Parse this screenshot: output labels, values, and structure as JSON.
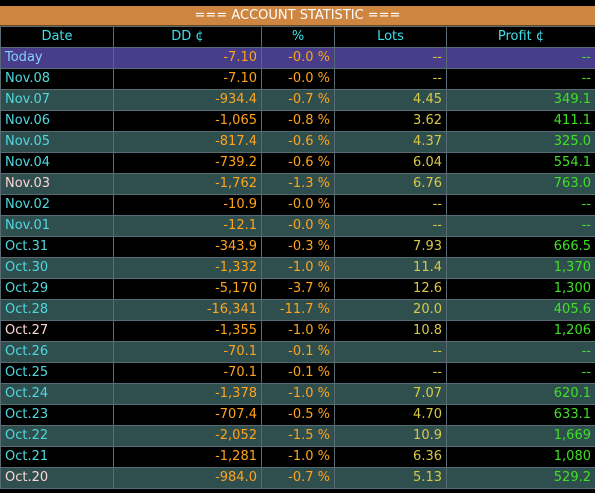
{
  "title": "=== ACCOUNT STATISTIC ===",
  "headers": [
    "Date",
    "DD ¢",
    "%",
    "Lots",
    "Profit ¢"
  ],
  "colors": {
    "title_bg": "#cd853f",
    "today_bg": "#483d8b",
    "row_teal": "#2f4f4f",
    "row_black": "#000000",
    "dd": "#ffa31a",
    "lots": "#d8c846",
    "profit": "#3fe024",
    "date": "#4fd8e0"
  },
  "rows": [
    {
      "date": "Today",
      "dd": "-7.10",
      "pct": "-0.0 %",
      "lots": "--",
      "profit": "--",
      "style": "today",
      "datecolor": "sky"
    },
    {
      "date": "Nov.08",
      "dd": "-7.10",
      "pct": "-0.0 %",
      "lots": "--",
      "profit": "--",
      "style": "k",
      "datecolor": "cyan"
    },
    {
      "date": "Nov.07",
      "dd": "-934.4",
      "pct": "-0.7 %",
      "lots": "4.45",
      "profit": "349.1",
      "style": "g",
      "datecolor": "cyan"
    },
    {
      "date": "Nov.06",
      "dd": "-1,065",
      "pct": "-0.8 %",
      "lots": "3.62",
      "profit": "411.1",
      "style": "k",
      "datecolor": "cyan"
    },
    {
      "date": "Nov.05",
      "dd": "-817.4",
      "pct": "-0.6 %",
      "lots": "4.37",
      "profit": "325.0",
      "style": "g",
      "datecolor": "cyan"
    },
    {
      "date": "Nov.04",
      "dd": "-739.2",
      "pct": "-0.6 %",
      "lots": "6.04",
      "profit": "554.1",
      "style": "k",
      "datecolor": "cyan"
    },
    {
      "date": "Nov.03",
      "dd": "-1,762",
      "pct": "-1.3 %",
      "lots": "6.76",
      "profit": "763.0",
      "style": "g",
      "datecolor": "rose"
    },
    {
      "date": "Nov.02",
      "dd": "-10.9",
      "pct": "-0.0 %",
      "lots": "--",
      "profit": "--",
      "style": "k",
      "datecolor": "cyan"
    },
    {
      "date": "Nov.01",
      "dd": "-12.1",
      "pct": "-0.0 %",
      "lots": "--",
      "profit": "--",
      "style": "g",
      "datecolor": "cyan"
    },
    {
      "date": "Oct.31",
      "dd": "-343.9",
      "pct": "-0.3 %",
      "lots": "7.93",
      "profit": "666.5",
      "style": "k",
      "datecolor": "cyan"
    },
    {
      "date": "Oct.30",
      "dd": "-1,332",
      "pct": "-1.0 %",
      "lots": "11.4",
      "profit": "1,370",
      "style": "g",
      "datecolor": "cyan"
    },
    {
      "date": "Oct.29",
      "dd": "-5,170",
      "pct": "-3.7 %",
      "lots": "12.6",
      "profit": "1,300",
      "style": "k",
      "datecolor": "cyan"
    },
    {
      "date": "Oct.28",
      "dd": "-16,341",
      "pct": "-11.7 %",
      "lots": "20.0",
      "profit": "405.6",
      "style": "g",
      "datecolor": "cyan"
    },
    {
      "date": "Oct.27",
      "dd": "-1,355",
      "pct": "-1.0 %",
      "lots": "10.8",
      "profit": "1,206",
      "style": "k",
      "datecolor": "rose"
    },
    {
      "date": "Oct.26",
      "dd": "-70.1",
      "pct": "-0.1 %",
      "lots": "--",
      "profit": "--",
      "style": "g",
      "datecolor": "cyan"
    },
    {
      "date": "Oct.25",
      "dd": "-70.1",
      "pct": "-0.1 %",
      "lots": "--",
      "profit": "--",
      "style": "k",
      "datecolor": "cyan"
    },
    {
      "date": "Oct.24",
      "dd": "-1,378",
      "pct": "-1.0 %",
      "lots": "7.07",
      "profit": "620.1",
      "style": "g",
      "datecolor": "cyan"
    },
    {
      "date": "Oct.23",
      "dd": "-707.4",
      "pct": "-0.5 %",
      "lots": "4.70",
      "profit": "633.1",
      "style": "k",
      "datecolor": "cyan"
    },
    {
      "date": "Oct.22",
      "dd": "-2,052",
      "pct": "-1.5 %",
      "lots": "10.9",
      "profit": "1,669",
      "style": "g",
      "datecolor": "cyan"
    },
    {
      "date": "Oct.21",
      "dd": "-1,281",
      "pct": "-1.0 %",
      "lots": "6.36",
      "profit": "1,080",
      "style": "k",
      "datecolor": "cyan"
    },
    {
      "date": "Oct.20",
      "dd": "-984.0",
      "pct": "-0.7 %",
      "lots": "5.13",
      "profit": "529.2",
      "style": "g",
      "datecolor": "rose"
    }
  ]
}
